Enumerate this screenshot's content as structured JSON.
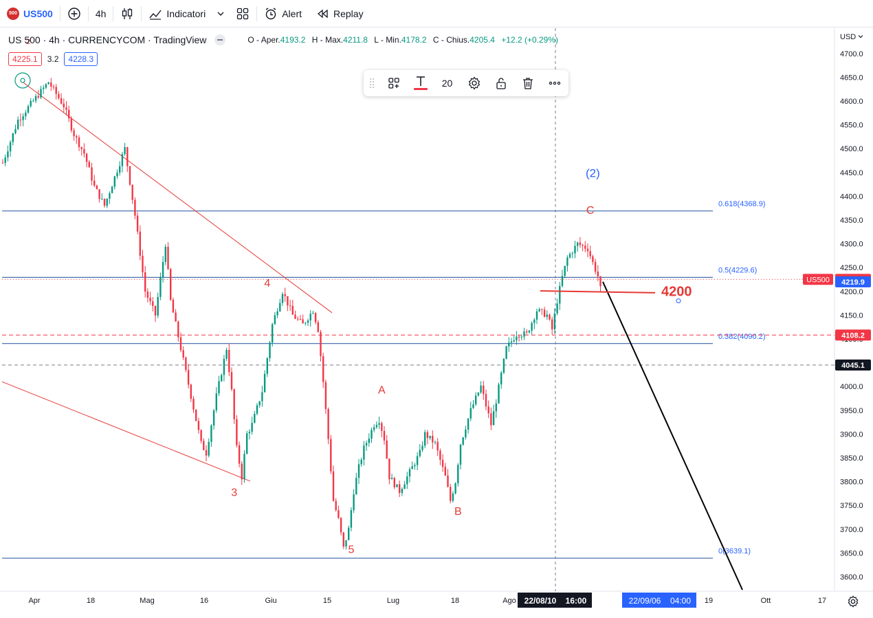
{
  "toolbar": {
    "symbol_logo": "500",
    "symbol": "US500",
    "add_icon": "plus-circle-icon",
    "interval": "4h",
    "chart_type_icon": "candles-icon",
    "indicators_label": "Indicatori",
    "layouts_icon": "layout-grid-icon",
    "alert_label": "Alert",
    "replay_label": "Replay"
  },
  "legend": {
    "title": "US 500 · 4h · CURRENCYCOM · TradingView",
    "open_label": "O - Aper.",
    "open": "4193.2",
    "high_label": "H - Max.",
    "high": "4211.8",
    "low_label": "L - Min.",
    "low": "4178.2",
    "close_label": "C - Chius.",
    "close": "4205.4",
    "change": "+12.2 (+0.29%)",
    "sell": "4225.1",
    "spread": "3.2",
    "buy": "4228.3"
  },
  "drawing_toolbar": {
    "size_value": "20"
  },
  "colors": {
    "up": "#089981",
    "down": "#f23645",
    "fib": "#1e4f9c",
    "annotation": "#e53935",
    "wave2": "#2962ff"
  },
  "chart_data": {
    "type": "candlestick",
    "symbol": "US500",
    "interval": "4h",
    "currency": "USD",
    "ylim": [
      3560,
      4760
    ],
    "y_ticks": [
      3600,
      3650,
      3700,
      3750,
      3800,
      3850,
      3900,
      3950,
      4000,
      4050,
      4100,
      4150,
      4200,
      4250,
      4300,
      4350,
      4400,
      4450,
      4500,
      4550,
      4600,
      4650,
      4700
    ],
    "x_ticks": [
      "Apr",
      "18",
      "Mag",
      "16",
      "Giu",
      "15",
      "Lug",
      "18",
      "Ago",
      "19",
      "Ott",
      "17"
    ],
    "price_series": [
      [
        0,
        4470
      ],
      [
        3,
        4560
      ],
      [
        6,
        4600
      ],
      [
        9,
        4640
      ],
      [
        12,
        4590
      ],
      [
        14,
        4530
      ],
      [
        16,
        4490
      ],
      [
        18,
        4420
      ],
      [
        20,
        4380
      ],
      [
        22,
        4440
      ],
      [
        24,
        4500
      ],
      [
        26,
        4360
      ],
      [
        28,
        4200
      ],
      [
        30,
        4150
      ],
      [
        32,
        4300
      ],
      [
        33,
        4180
      ],
      [
        35,
        4080
      ],
      [
        37,
        3980
      ],
      [
        39,
        3880
      ],
      [
        40,
        3860
      ],
      [
        42,
        3980
      ],
      [
        44,
        4080
      ],
      [
        45,
        3990
      ],
      [
        46,
        3870
      ],
      [
        47,
        3810
      ],
      [
        48,
        3900
      ],
      [
        49,
        3920
      ],
      [
        51,
        3990
      ],
      [
        53,
        4130
      ],
      [
        55,
        4200
      ],
      [
        57,
        4150
      ],
      [
        59,
        4130
      ],
      [
        61,
        4160
      ],
      [
        62,
        4120
      ],
      [
        63,
        4010
      ],
      [
        64,
        3890
      ],
      [
        65,
        3760
      ],
      [
        66,
        3720
      ],
      [
        67,
        3660
      ],
      [
        68,
        3700
      ],
      [
        69,
        3780
      ],
      [
        70,
        3830
      ],
      [
        71,
        3870
      ],
      [
        73,
        3920
      ],
      [
        74,
        3930
      ],
      [
        75,
        3890
      ],
      [
        76,
        3810
      ],
      [
        78,
        3780
      ],
      [
        80,
        3820
      ],
      [
        82,
        3860
      ],
      [
        83,
        3900
      ],
      [
        85,
        3880
      ],
      [
        87,
        3810
      ],
      [
        88,
        3760
      ],
      [
        89,
        3800
      ],
      [
        90,
        3880
      ],
      [
        92,
        3950
      ],
      [
        94,
        4000
      ],
      [
        95,
        3960
      ],
      [
        96,
        3920
      ],
      [
        97,
        3970
      ],
      [
        99,
        4080
      ],
      [
        101,
        4110
      ],
      [
        103,
        4110
      ],
      [
        105,
        4160
      ],
      [
        107,
        4150
      ],
      [
        108,
        4120
      ],
      [
        109,
        4180
      ],
      [
        110,
        4230
      ],
      [
        111,
        4270
      ],
      [
        113,
        4300
      ],
      [
        115,
        4290
      ],
      [
        116,
        4260
      ],
      [
        117,
        4232
      ],
      [
        117.5,
        4205
      ]
    ],
    "fib_levels": [
      {
        "label": "0.618(4368.9)",
        "value": 4368.9
      },
      {
        "label": "0.5(4229.6)",
        "value": 4229.6
      },
      {
        "label": "0.382(4090.2)",
        "value": 4090.2
      },
      {
        "label": "0(3639.1)",
        "value": 3639.1
      }
    ],
    "horizontal_lines": [
      4108.2,
      4045.1
    ],
    "axis_tags": [
      {
        "label": "US500",
        "value": "4225.1",
        "bg": "#f23645"
      },
      {
        "label": "",
        "value": "4219.9",
        "bg": "#2962ff"
      },
      {
        "label": "",
        "value": "4108.2",
        "bg": "#f23645"
      },
      {
        "label": "",
        "value": "4045.1",
        "bg": "#131722"
      }
    ],
    "wave_labels": [
      {
        "text": "2",
        "t": 5,
        "p": 4720
      },
      {
        "text": "3",
        "t": 45.5,
        "p": 3770
      },
      {
        "text": "4",
        "t": 52,
        "p": 4210
      },
      {
        "text": "5",
        "t": 68.5,
        "p": 3650
      },
      {
        "text": "A",
        "t": 74.5,
        "p": 3985
      },
      {
        "text": "B",
        "t": 89.5,
        "p": 3730
      },
      {
        "text": "C",
        "t": 115.5,
        "p": 4363
      },
      {
        "text": "(2)",
        "t": 116,
        "p": 4440
      }
    ],
    "price_label": "4200",
    "crosshair_date": "22/08/10",
    "crosshair_time": "16:00",
    "range_date": "22/09/06",
    "range_time": "04:00"
  }
}
